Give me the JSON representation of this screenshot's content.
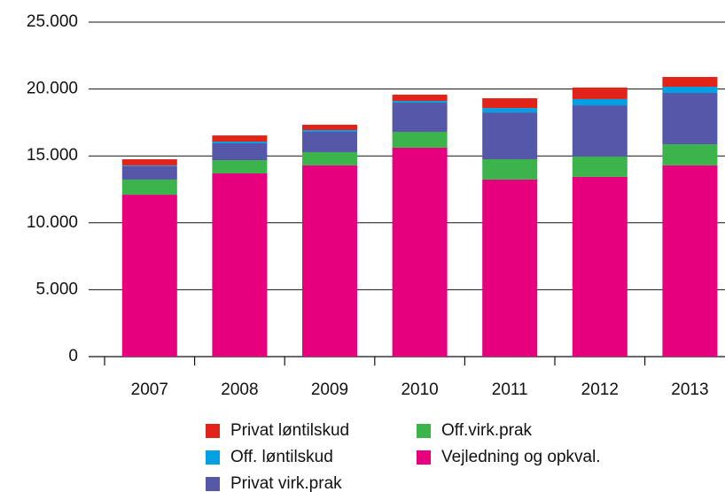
{
  "chart_data": {
    "type": "stacked_bar",
    "categories": [
      "2007",
      "2008",
      "2009",
      "2010",
      "2011",
      "2012",
      "2013"
    ],
    "series": [
      {
        "name": "Vejledning og opkval.",
        "color": "#e6007e",
        "values": [
          12100,
          13690,
          14290,
          15610,
          13230,
          13430,
          14290
        ]
      },
      {
        "name": "Off.virk.prak",
        "color": "#3cb44b",
        "values": [
          1130,
          990,
          990,
          1190,
          1520,
          1520,
          1580
        ]
      },
      {
        "name": "Privat virk.prak",
        "color": "#5558a8",
        "values": [
          1010,
          1260,
          1520,
          2180,
          3500,
          3830,
          3840
        ]
      },
      {
        "name": "Off. løntilskud",
        "color": "#00a0e3",
        "values": [
          50,
          130,
          130,
          130,
          330,
          470,
          460
        ]
      },
      {
        "name": "Privat løntilskud",
        "color": "#e2231a",
        "values": [
          460,
          460,
          400,
          470,
          730,
          860,
          730
        ]
      }
    ],
    "ylim": [
      0,
      25000
    ],
    "yticks": [
      0,
      {
        "value": 5000,
        "label": "5.000"
      },
      {
        "value": 10000,
        "label": "10.000"
      },
      {
        "value": 15000,
        "label": "15.000"
      },
      {
        "value": 20000,
        "label": "20.000"
      },
      {
        "value": 25000,
        "label": "25.000"
      }
    ],
    "grid": true
  }
}
